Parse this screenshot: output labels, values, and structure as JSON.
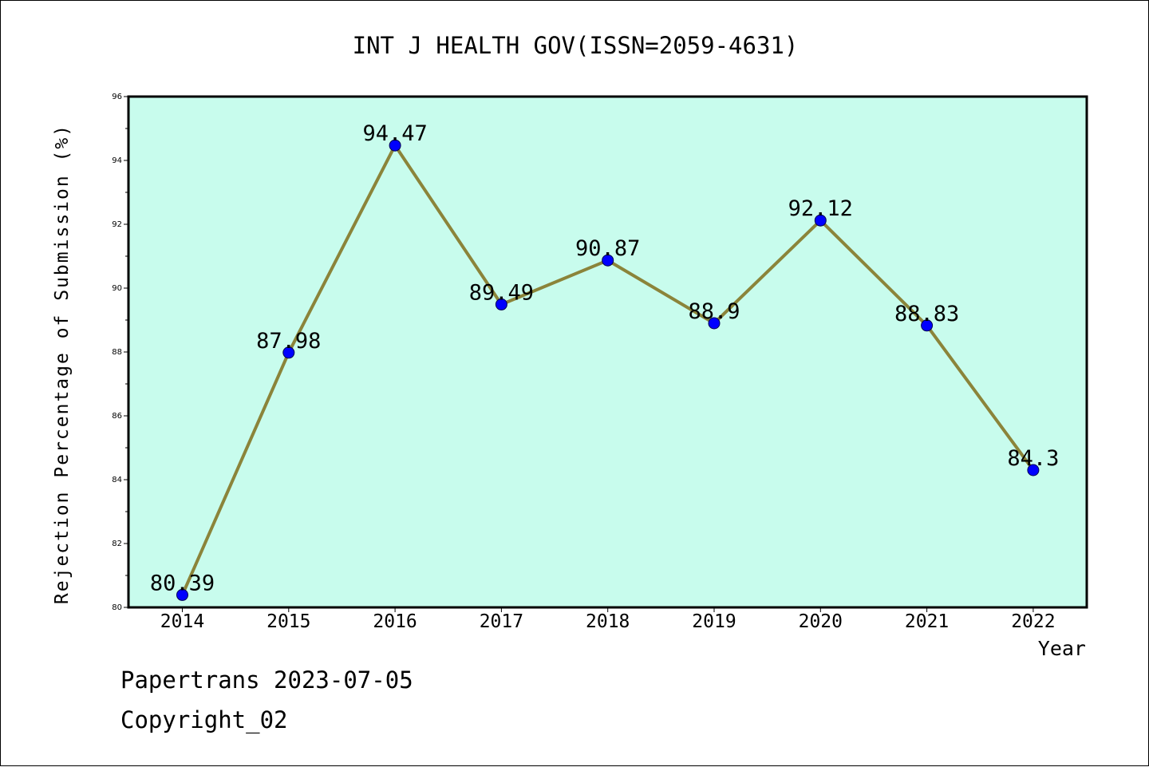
{
  "chart_data": {
    "type": "line",
    "title": "INT J HEALTH GOV(ISSN=2059-4631)",
    "xlabel": "Year",
    "ylabel": "Rejection Percentage of Submission (%)",
    "categories": [
      "2014",
      "2015",
      "2016",
      "2017",
      "2018",
      "2019",
      "2020",
      "2021",
      "2022"
    ],
    "series": [
      {
        "values": [
          80.39,
          87.98,
          94.47,
          89.49,
          90.87,
          88.9,
          92.12,
          88.83,
          84.3
        ]
      }
    ],
    "data_labels": [
      "80.39",
      "87.98",
      "94.47",
      "89.49",
      "90.87",
      "88.9",
      "92.12",
      "88.83",
      "84.3"
    ],
    "ylim": [
      80,
      96
    ],
    "yticks": [
      80,
      82,
      84,
      86,
      88,
      90,
      92,
      94,
      96
    ],
    "grid": false,
    "colors": {
      "plot_background": "#c8fced",
      "line": "#8b843a",
      "marker": "#0000ff"
    }
  },
  "footer": {
    "line1": "Papertrans 2023-07-05",
    "line2": "Copyright_02"
  }
}
